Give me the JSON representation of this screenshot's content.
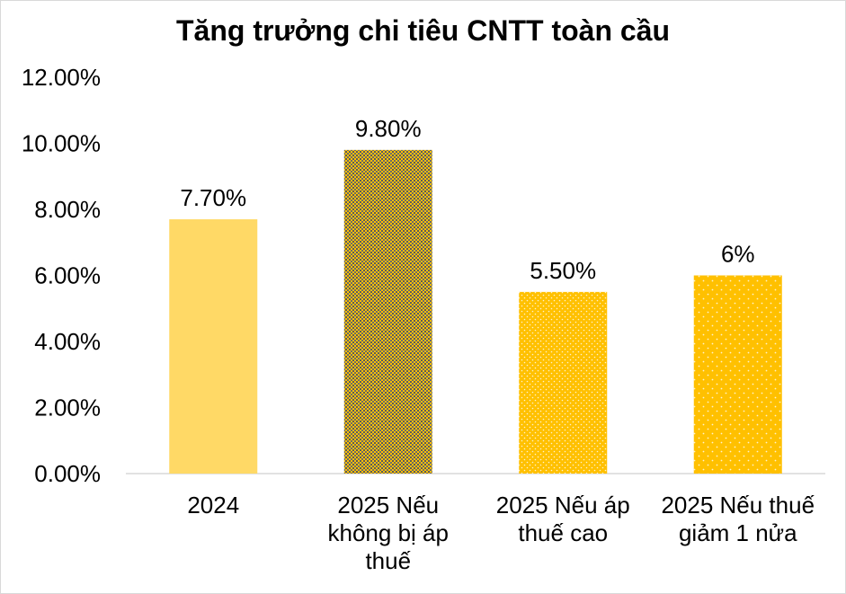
{
  "chart_data": {
    "type": "bar",
    "title": "Tăng trưởng chi tiêu CNTT toàn cầu",
    "categories": [
      [
        "2024"
      ],
      [
        "2025 Nếu",
        "không bị áp",
        "thuế"
      ],
      [
        "2025 Nếu áp",
        "thuế cao"
      ],
      [
        "2025 Nếu thuế",
        "giảm 1 nửa"
      ]
    ],
    "values": [
      7.7,
      9.8,
      5.5,
      6.0
    ],
    "data_labels": [
      "7.70%",
      "9.80%",
      "5.50%",
      "6%"
    ],
    "y_ticks": [
      0,
      2,
      4,
      6,
      8,
      10,
      12
    ],
    "y_tick_labels": [
      "0.00%",
      "2.00%",
      "4.00%",
      "6.00%",
      "8.00%",
      "10.00%",
      "12.00%"
    ],
    "ylim": [
      0,
      12
    ],
    "grid": false,
    "legend": "none",
    "colors": {
      "bar1": "#ffd966",
      "bar2_base": "#ffc000",
      "bar2_dot": "#5a5a5a",
      "bar3_base": "#ffc000",
      "bar4_base": "#ffc000",
      "axis": "#d9d9d9"
    }
  }
}
